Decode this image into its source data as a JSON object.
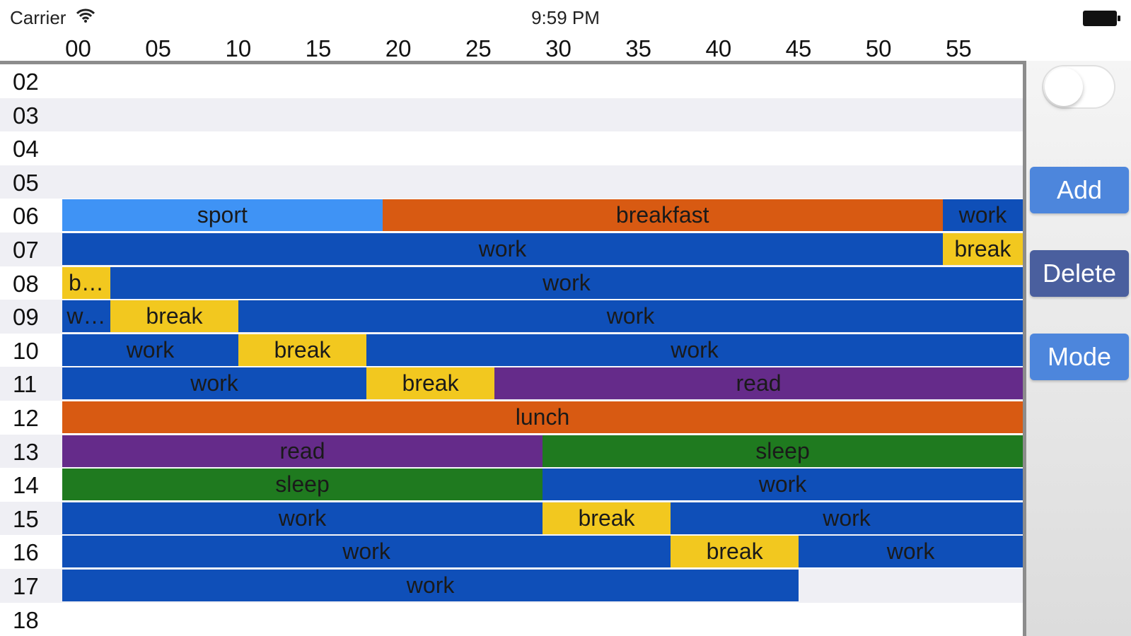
{
  "status_bar": {
    "carrier": "Carrier",
    "time": "9:59 PM"
  },
  "minute_labels": [
    "00",
    "05",
    "10",
    "15",
    "20",
    "25",
    "30",
    "35",
    "40",
    "45",
    "50",
    "55"
  ],
  "hours": [
    {
      "label": "02",
      "events": []
    },
    {
      "label": "03",
      "events": []
    },
    {
      "label": "04",
      "events": []
    },
    {
      "label": "05",
      "events": []
    },
    {
      "label": "06",
      "events": [
        {
          "name": "sport",
          "start": 0,
          "end": 20,
          "color": "blue-light"
        },
        {
          "name": "breakfast",
          "start": 20,
          "end": 55,
          "color": "orange"
        },
        {
          "name": "work",
          "start": 55,
          "end": 60,
          "color": "blue"
        }
      ]
    },
    {
      "label": "07",
      "events": [
        {
          "name": "work",
          "start": 0,
          "end": 55,
          "color": "blue"
        },
        {
          "name": "break",
          "start": 55,
          "end": 60,
          "color": "yellow"
        }
      ]
    },
    {
      "label": "08",
      "events": [
        {
          "name": "b…",
          "start": 0,
          "end": 3,
          "color": "yellow"
        },
        {
          "name": "work",
          "start": 3,
          "end": 60,
          "color": "blue"
        }
      ]
    },
    {
      "label": "09",
      "events": [
        {
          "name": "w…",
          "start": 0,
          "end": 3,
          "color": "blue"
        },
        {
          "name": "break",
          "start": 3,
          "end": 11,
          "color": "yellow"
        },
        {
          "name": "work",
          "start": 11,
          "end": 60,
          "color": "blue"
        }
      ]
    },
    {
      "label": "10",
      "events": [
        {
          "name": "work",
          "start": 0,
          "end": 11,
          "color": "blue"
        },
        {
          "name": "break",
          "start": 11,
          "end": 19,
          "color": "yellow"
        },
        {
          "name": "work",
          "start": 19,
          "end": 60,
          "color": "blue"
        }
      ]
    },
    {
      "label": "11",
      "events": [
        {
          "name": "work",
          "start": 0,
          "end": 19,
          "color": "blue"
        },
        {
          "name": "break",
          "start": 19,
          "end": 27,
          "color": "yellow"
        },
        {
          "name": "read",
          "start": 27,
          "end": 60,
          "color": "purple"
        }
      ]
    },
    {
      "label": "12",
      "events": [
        {
          "name": "lunch",
          "start": 0,
          "end": 60,
          "color": "orange"
        }
      ]
    },
    {
      "label": "13",
      "events": [
        {
          "name": "read",
          "start": 0,
          "end": 30,
          "color": "purple"
        },
        {
          "name": "sleep",
          "start": 30,
          "end": 60,
          "color": "green"
        }
      ]
    },
    {
      "label": "14",
      "events": [
        {
          "name": "sleep",
          "start": 0,
          "end": 30,
          "color": "green"
        },
        {
          "name": "work",
          "start": 30,
          "end": 60,
          "color": "blue"
        }
      ]
    },
    {
      "label": "15",
      "events": [
        {
          "name": "work",
          "start": 0,
          "end": 30,
          "color": "blue"
        },
        {
          "name": "break",
          "start": 30,
          "end": 38,
          "color": "yellow"
        },
        {
          "name": "work",
          "start": 38,
          "end": 60,
          "color": "blue"
        }
      ]
    },
    {
      "label": "16",
      "events": [
        {
          "name": "work",
          "start": 0,
          "end": 38,
          "color": "blue"
        },
        {
          "name": "break",
          "start": 38,
          "end": 46,
          "color": "yellow"
        },
        {
          "name": "work",
          "start": 46,
          "end": 60,
          "color": "blue"
        }
      ]
    },
    {
      "label": "17",
      "events": [
        {
          "name": "work",
          "start": 0,
          "end": 46,
          "color": "blue"
        }
      ]
    },
    {
      "label": "18",
      "events": []
    }
  ],
  "side_panel": {
    "toggle_on": false,
    "add_label": "Add",
    "delete_label": "Delete",
    "mode_label": "Mode"
  },
  "icons": {
    "wifi": "wifi-icon",
    "battery": "battery-icon"
  }
}
